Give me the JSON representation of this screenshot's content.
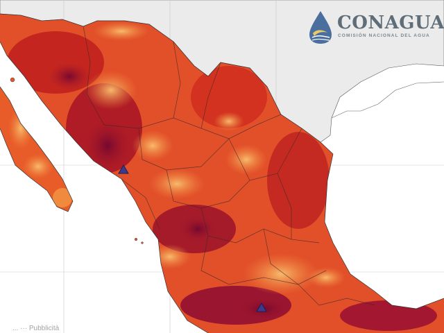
{
  "logo": {
    "title": "CONAGUA",
    "subtitle": "COMISIÓN NACIONAL DEL AGUA"
  },
  "credit": "... ··· Pubblicità",
  "map": {
    "land_color": "#ebebeb",
    "ocean_color": "#ffffff",
    "heat_palette": [
      "#f6b25c",
      "#f08a3c",
      "#e5562b",
      "#d2321f",
      "#a8182a",
      "#7a0a30"
    ],
    "marker_color": "#3b3b8a",
    "marker_icon": "triangle-marker-icon"
  }
}
